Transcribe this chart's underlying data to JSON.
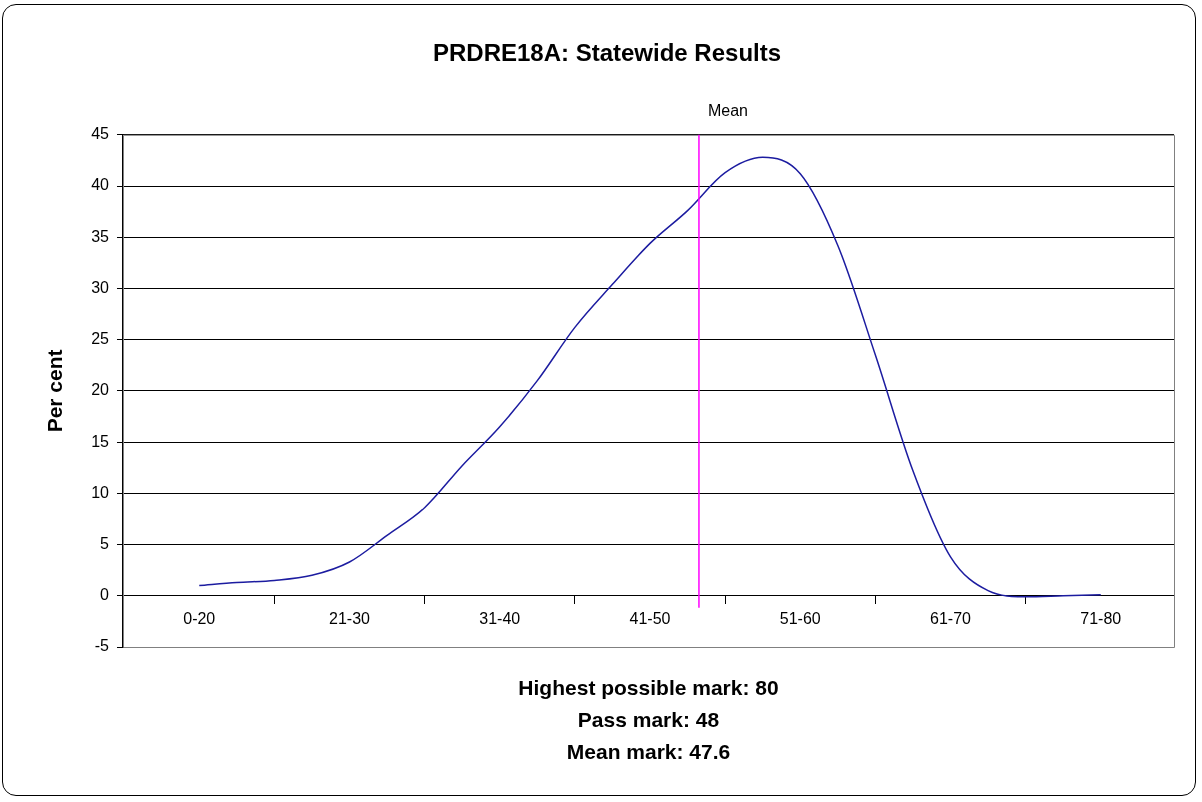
{
  "chart_data": {
    "type": "line",
    "title": "PRDRE18A: Statewide Results",
    "ylabel": "Per cent",
    "categories": [
      "0-20",
      null,
      null,
      null,
      "21-30",
      null,
      null,
      null,
      "31-40",
      null,
      null,
      null,
      "41-50",
      null,
      null,
      null,
      "51-60",
      null,
      null,
      null,
      "61-70",
      null,
      null,
      null,
      "71-80"
    ],
    "series": [
      {
        "color": "#1c1ca0",
        "values": [
          1.0,
          1.3,
          1.5,
          2.0,
          3.3,
          5.9,
          8.6,
          12.7,
          16.5,
          21.0,
          26.2,
          30.4,
          34.4,
          37.6,
          41.3,
          42.8,
          41.2,
          34.2,
          23.5,
          12.2,
          3.8,
          0.5,
          -0.1,
          0.0,
          0.1
        ]
      }
    ],
    "ylim": [
      -5,
      45
    ],
    "yticks": [
      -5,
      0,
      5,
      10,
      15,
      20,
      25,
      30,
      35,
      40,
      45
    ],
    "grid": "y",
    "legend": false,
    "marker": "none",
    "line_style": "solid",
    "annotations": [
      "Mean",
      "Highest possible mark: 80",
      "Pass mark: 48",
      "Mean mark: 47.6"
    ]
  }
}
